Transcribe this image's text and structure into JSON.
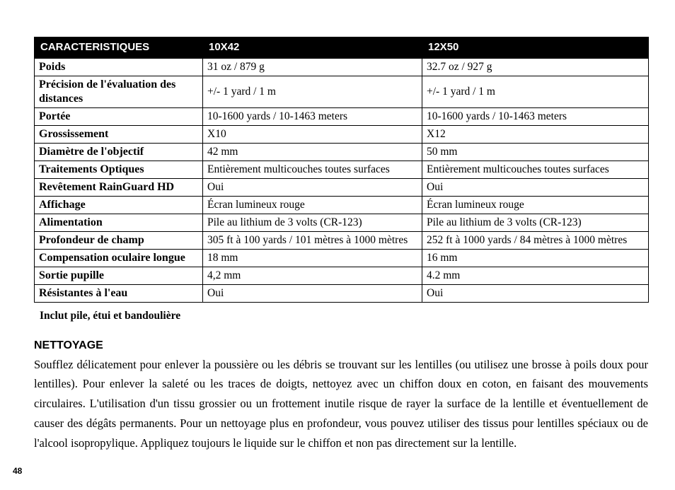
{
  "table": {
    "headers": [
      "Caracteristiques",
      "10x42",
      "12x50"
    ],
    "rows": [
      {
        "label": "Poids",
        "c1": "31 oz / 879 g",
        "c2": "32.7 oz / 927 g"
      },
      {
        "label": "Précision de l'évaluation des distances",
        "c1": "+/- 1 yard / 1 m",
        "c2": "+/- 1 yard / 1 m"
      },
      {
        "label": "Portée",
        "c1": "10-1600 yards / 10-1463 meters",
        "c2": "10-1600 yards / 10-1463 meters"
      },
      {
        "label": "Grossissement",
        "c1": "X10",
        "c2": "X12"
      },
      {
        "label": "Diamètre de l'objectif",
        "c1": "42 mm",
        "c2": "50 mm"
      },
      {
        "label": "Traitements Optiques",
        "c1": "Entièrement multicouches toutes surfaces",
        "c2": "Entièrement multicouches toutes surfaces"
      },
      {
        "label": "Revêtement RainGuard HD",
        "c1": "Oui",
        "c2": "Oui"
      },
      {
        "label": "Affichage",
        "c1": "Écran lumineux rouge",
        "c2": "Écran lumineux rouge"
      },
      {
        "label": "Alimentation",
        "c1": "Pile au lithium de 3 volts (CR-123)",
        "c2": "Pile au lithium de 3 volts (CR-123)"
      },
      {
        "label": "Profondeur de champ",
        "c1": "305 ft à 100 yards / 101 mètres à 1000 mètres",
        "c2": "252 ft à 1000 yards / 84 mètres à 1000 mètres"
      },
      {
        "label": "Compensation oculaire longue",
        "c1": "18 mm",
        "c2": "16 mm"
      },
      {
        "label": "Sortie pupille",
        "c1": "4,2 mm",
        "c2": "4.2 mm"
      },
      {
        "label": "Résistantes à l'eau",
        "c1": "Oui",
        "c2": "Oui"
      }
    ]
  },
  "footnote": "Inclut pile, étui et bandoulière",
  "section": {
    "heading": "Nettoyage",
    "body": "Soufflez délicatement pour enlever la poussière ou les débris se trouvant sur les lentilles (ou utilisez une brosse à poils doux pour lentilles). Pour enlever la saleté ou les traces de doigts, nettoyez avec un chiffon doux en coton, en faisant des mouvements circulaires. L'utilisation d'un tissu grossier ou un frottement inutile risque de rayer la surface de la lentille et éventuellement de causer des dégâts permanents. Pour un nettoyage plus en profondeur, vous pouvez utiliser des tissus pour lentilles spéciaux ou de l'alcool isopropylique. Appliquez toujours le liquide sur le chiffon et non pas directement sur la lentille."
  },
  "page_number": "48"
}
